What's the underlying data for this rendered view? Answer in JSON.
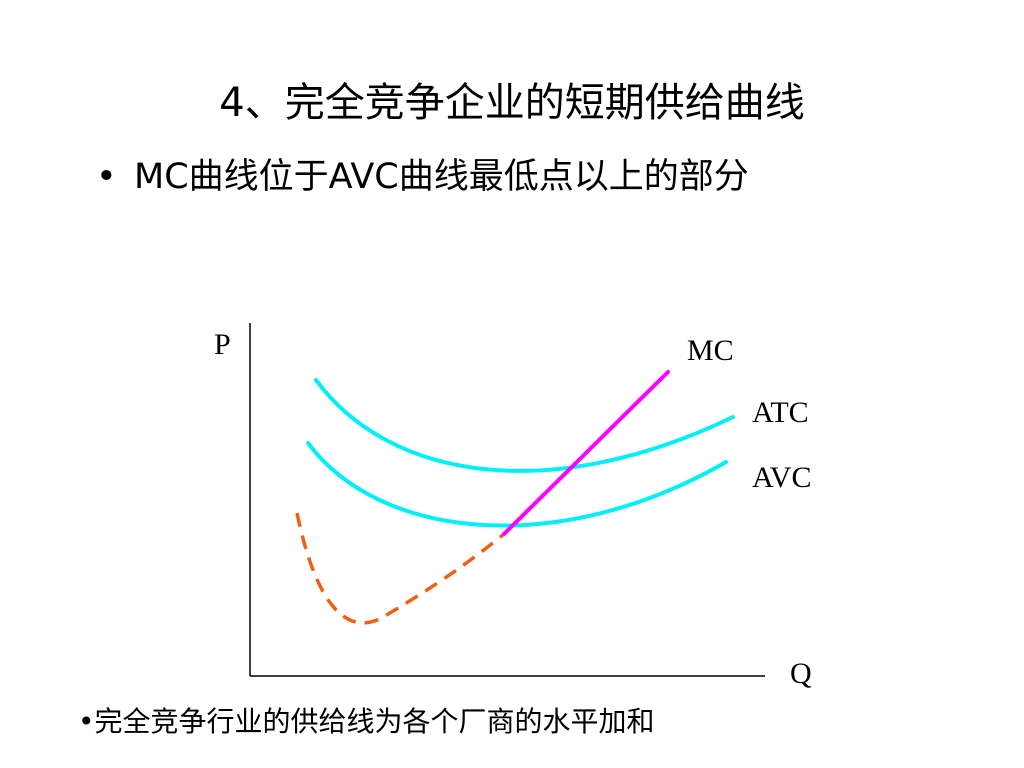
{
  "slide": {
    "title": "4、完全竞争企业的短期供给曲线",
    "bullet_main": {
      "marker": "•",
      "text": "MC曲线位于AVC曲线最低点以上的部分"
    },
    "bullet_bottom": {
      "marker": "•",
      "text": "完全竞争行业的供给线为各个厂商的水平加和"
    }
  },
  "diagram": {
    "axis_y_label": "P",
    "axis_x_label": "Q",
    "curves": [
      {
        "id": "mc",
        "label": "MC",
        "color": "#ff00ff",
        "style": "solid"
      },
      {
        "id": "atc",
        "label": "ATC",
        "color": "#00f0f8",
        "style": "solid"
      },
      {
        "id": "avc",
        "label": "AVC",
        "color": "#00f0f8",
        "style": "solid"
      },
      {
        "id": "mc-below-avc",
        "label": "",
        "color": "#f06010",
        "style": "dashed"
      }
    ],
    "axis_color": "#000000"
  }
}
